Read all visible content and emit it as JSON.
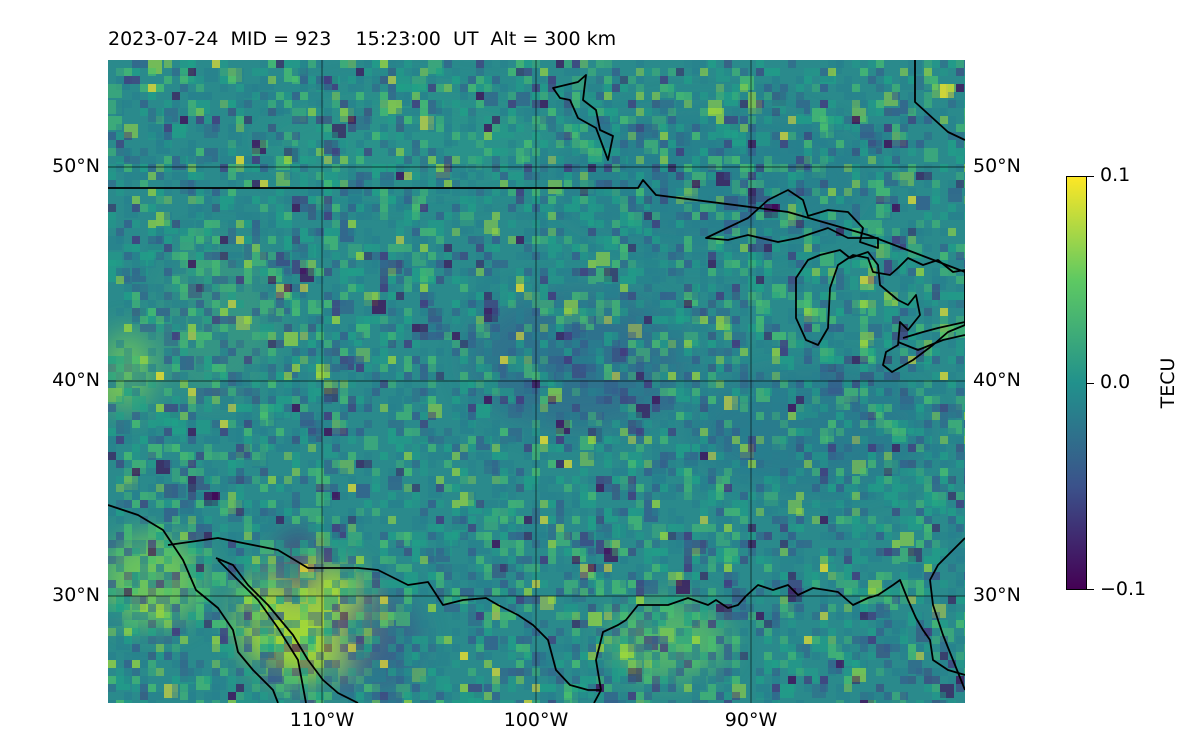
{
  "title": "2023-07-24  MID = 923    15:23:00  UT  Alt = 300 km",
  "map": {
    "lat_labels": [
      "50°N",
      "40°N",
      "30°N"
    ],
    "lon_labels": [
      "110°W",
      "100°W",
      "90°W"
    ],
    "lat_range": [
      25,
      55
    ],
    "lon_range": [
      -120,
      -80
    ],
    "gridlines": true,
    "field": "TEC anomaly (noisy gridded field)"
  },
  "colorbar": {
    "label": "TECU",
    "ticks": [
      "0.1",
      "0.0",
      "−0.1"
    ],
    "vmin": -0.1,
    "vmax": 0.1,
    "colormap": [
      "#440154",
      "#3b528b",
      "#21918c",
      "#5ec962",
      "#fde725"
    ]
  }
}
